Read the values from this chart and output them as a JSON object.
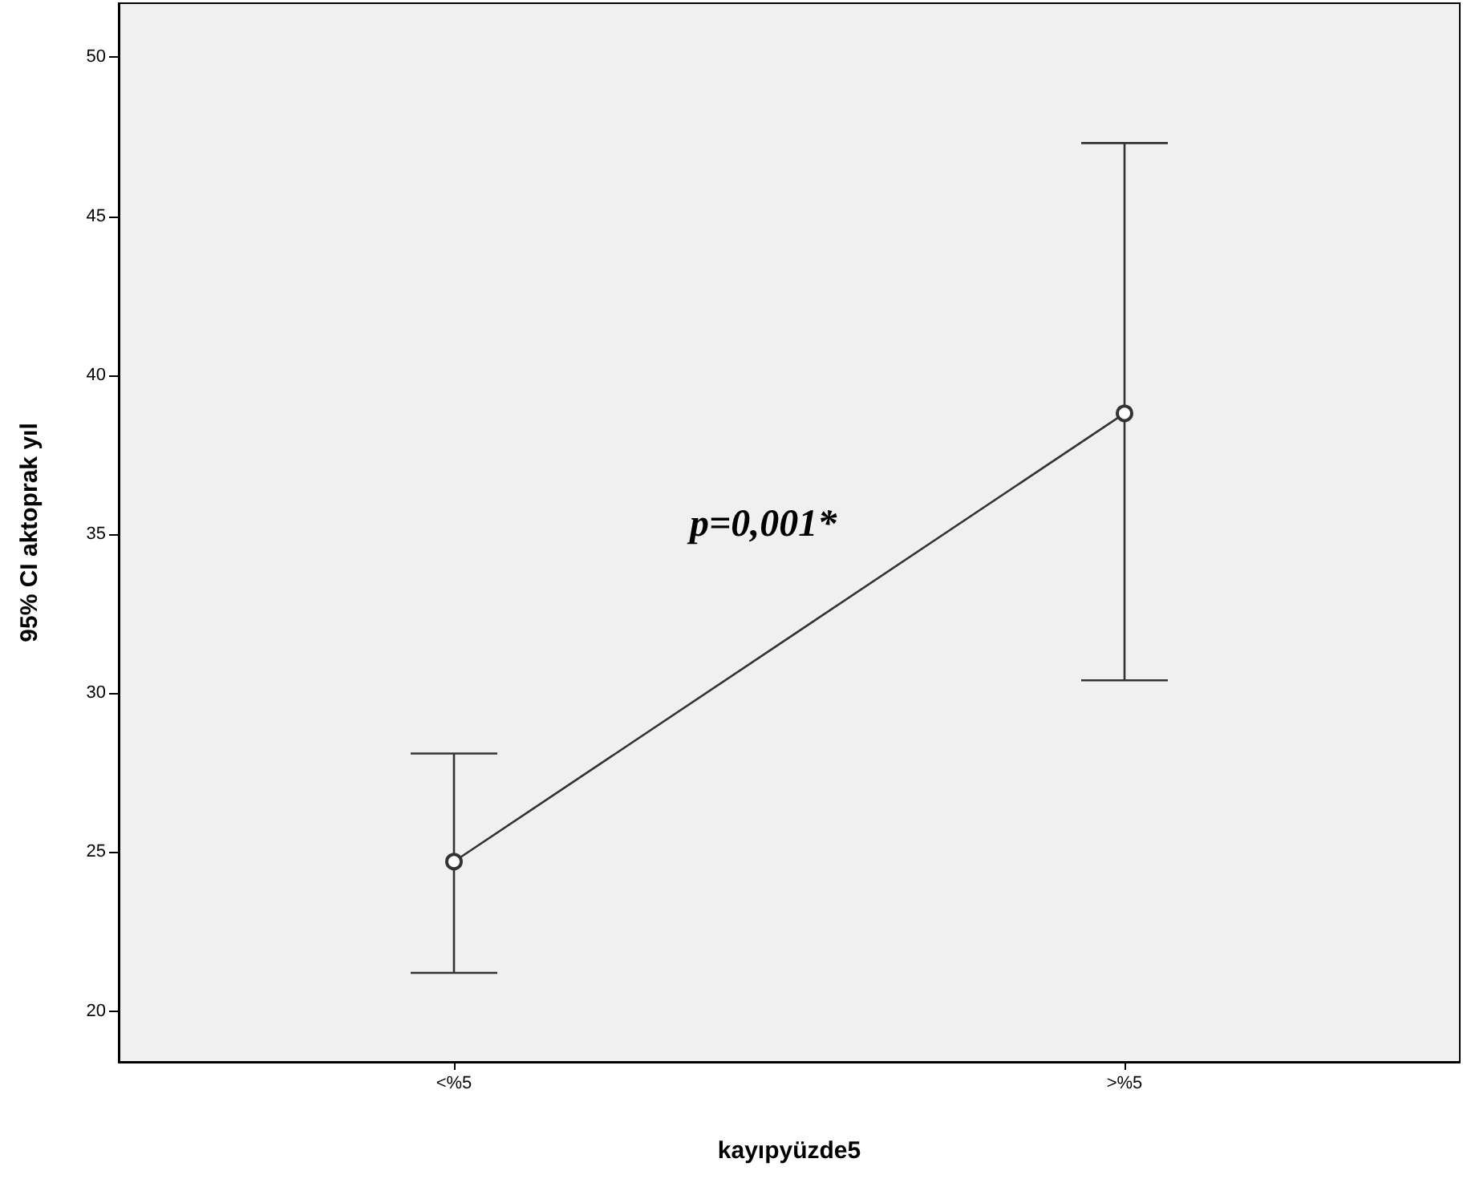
{
  "chart_data": {
    "type": "line",
    "xlabel": "kayıpyüzde5",
    "ylabel": "95% CI aktoprak yıl",
    "categories": [
      "<%5",
      ">%5"
    ],
    "series": [
      {
        "color": "#333333",
        "values": [
          24.7,
          38.8
        ],
        "errors": [
          [
            21.2,
            28.1
          ],
          [
            30.4,
            47.3
          ]
        ]
      }
    ],
    "ylim": [
      18.4,
      51.7
    ],
    "yticks": [
      20,
      25,
      30,
      35,
      40,
      45,
      50
    ],
    "grid": false,
    "marker": "circle",
    "line_style": "solid",
    "annotations": [
      "p=0,001*"
    ]
  }
}
